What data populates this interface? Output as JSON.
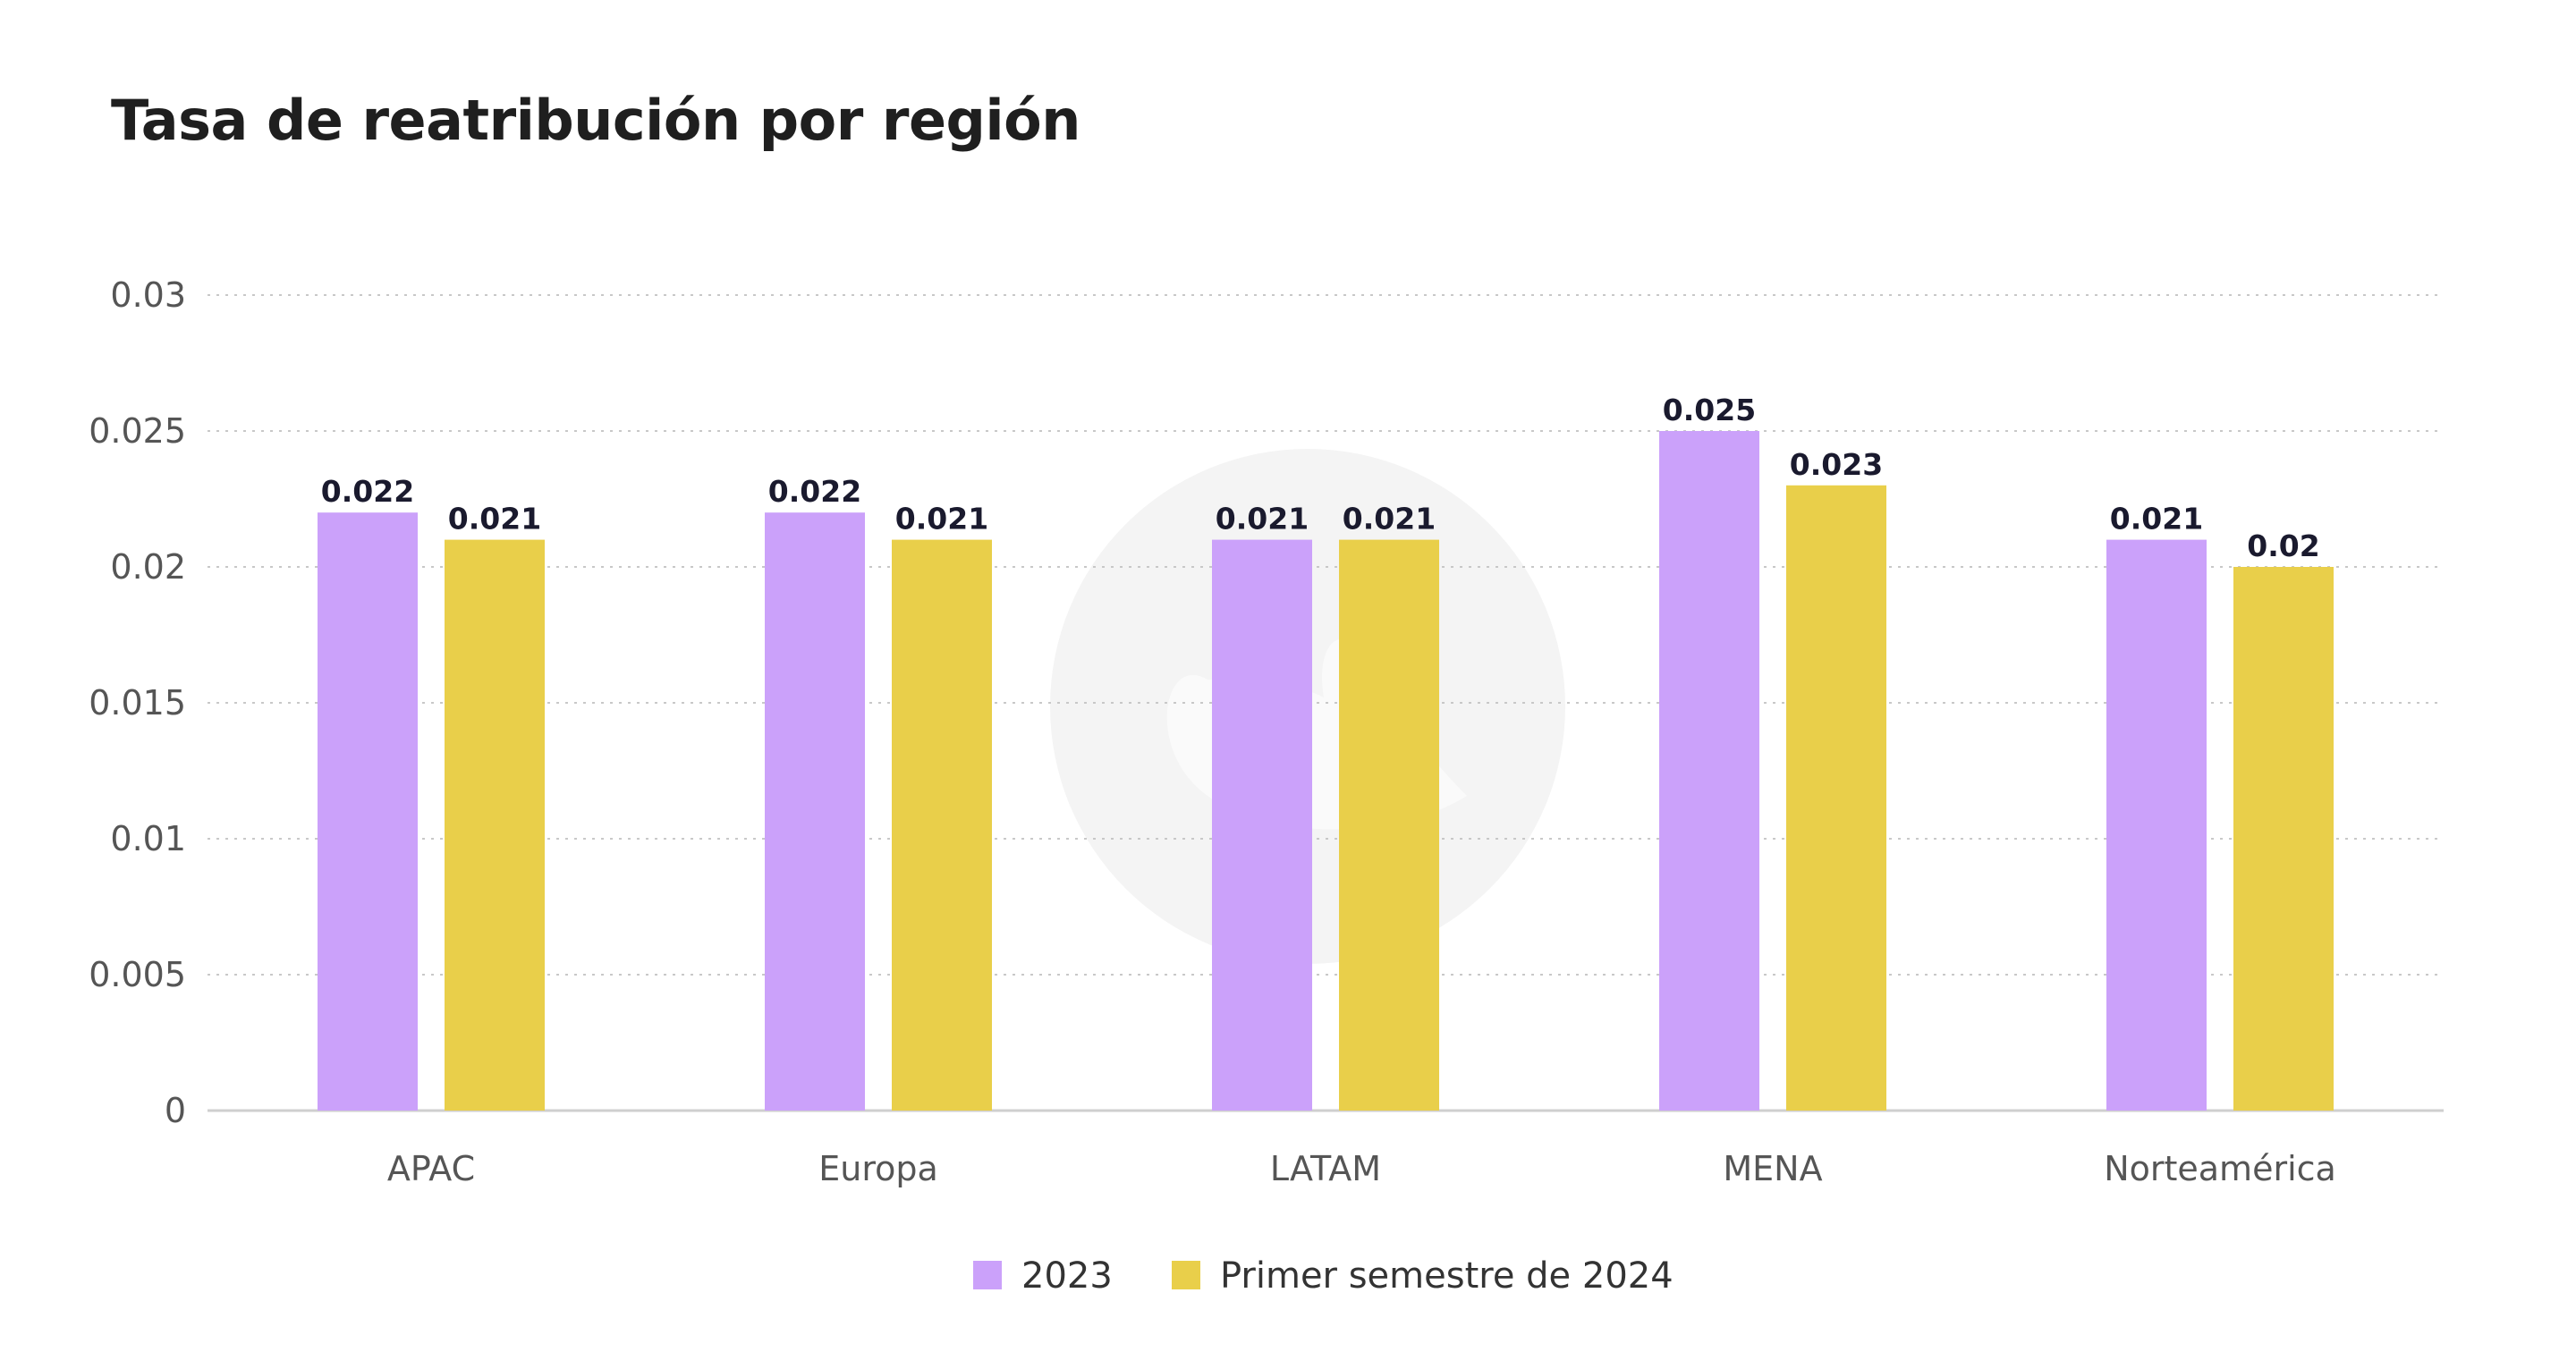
{
  "chart_data": {
    "type": "bar",
    "title": "Tasa de reatribución por región",
    "xlabel": "",
    "ylabel": "",
    "categories": [
      "APAC",
      "Europa",
      "LATAM",
      "MENA",
      "Norteamérica"
    ],
    "series": [
      {
        "name": "2023",
        "values": [
          0.022,
          0.022,
          0.021,
          0.025,
          0.021
        ],
        "color": "#cba1fa"
      },
      {
        "name": "Primer semestre de 2024",
        "values": [
          0.021,
          0.021,
          0.021,
          0.023,
          0.02
        ],
        "color": "#e9cf4a"
      }
    ],
    "data_labels": [
      [
        "0.022",
        "0.022",
        "0.021",
        "0.025",
        "0.021"
      ],
      [
        "0.021",
        "0.021",
        "0.021",
        "0.023",
        "0.02"
      ]
    ],
    "ylim": [
      0,
      0.03
    ],
    "yticks": [
      0,
      0.005,
      0.01,
      0.015,
      0.02,
      0.025,
      0.03
    ],
    "ytick_labels": [
      "0",
      "0.005",
      "0.01",
      "0.015",
      "0.02",
      "0.025",
      "0.03"
    ],
    "grid": true,
    "legend": "bottom-center",
    "watermark_color": "#f4f4f4"
  }
}
